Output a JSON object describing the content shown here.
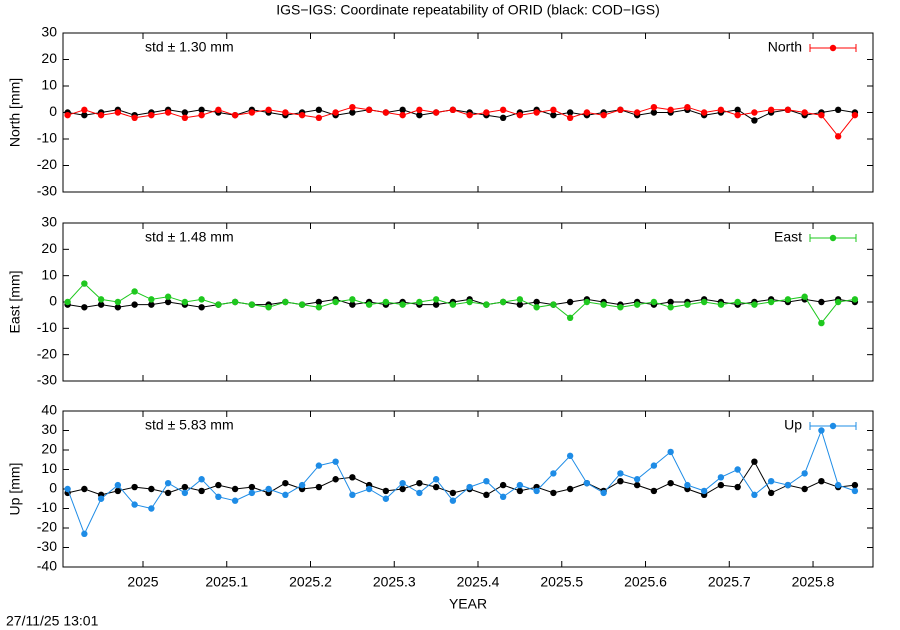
{
  "title": "IGS−IGS: Coordinate repeatability of ORID (black: COD−IGS)",
  "timestamp": "27/11/25 13:01",
  "chart_data": [
    {
      "type": "line",
      "ylabel": "North [mm]",
      "std_label": "std ± 1.30 mm",
      "xlim": [
        2024.9045,
        2025.8716
      ],
      "xticks": [
        2025,
        2025.1,
        2025.2,
        2025.3,
        2025.4,
        2025.5,
        2025.6,
        2025.7,
        2025.8
      ],
      "ylim": [
        -30,
        30
      ],
      "yticks": [
        -30,
        -20,
        -10,
        0,
        10,
        20,
        30
      ],
      "legend": "top-right",
      "x": [
        2024.91,
        2024.93,
        2024.95,
        2024.97,
        2024.99,
        2025.01,
        2025.03,
        2025.05,
        2025.07,
        2025.09,
        2025.11,
        2025.13,
        2025.15,
        2025.17,
        2025.19,
        2025.21,
        2025.23,
        2025.25,
        2025.27,
        2025.29,
        2025.31,
        2025.33,
        2025.35,
        2025.37,
        2025.39,
        2025.41,
        2025.43,
        2025.45,
        2025.47,
        2025.49,
        2025.51,
        2025.53,
        2025.55,
        2025.57,
        2025.59,
        2025.61,
        2025.63,
        2025.65,
        2025.67,
        2025.69,
        2025.71,
        2025.73,
        2025.75,
        2025.77,
        2025.79,
        2025.81,
        2025.83,
        2025.85
      ],
      "series": [
        {
          "color": "#000000",
          "values": [
            0,
            -1,
            0,
            1,
            -1,
            0,
            1,
            0,
            1,
            0,
            -1,
            1,
            0,
            -1,
            0,
            1,
            -1,
            0,
            1,
            0,
            1,
            -1,
            0,
            1,
            0,
            -1,
            -2,
            0,
            1,
            -1,
            0,
            -1,
            0,
            1,
            -1,
            0,
            0,
            1,
            -1,
            0,
            1,
            -3,
            0,
            1,
            -1,
            0,
            1,
            0
          ]
        },
        {
          "name": "North",
          "color": "#ff0000",
          "values": [
            -1,
            1,
            -1,
            0,
            -2,
            -1,
            0,
            -2,
            -1,
            1,
            -1,
            0,
            1,
            0,
            -1,
            -2,
            0,
            2,
            1,
            0,
            -1,
            1,
            0,
            1,
            -1,
            0,
            1,
            -1,
            0,
            1,
            -2,
            0,
            -1,
            1,
            0,
            2,
            1,
            2,
            0,
            1,
            -1,
            0,
            1,
            1,
            0,
            -1,
            -9,
            -1
          ]
        }
      ]
    },
    {
      "type": "line",
      "ylabel": "East [mm]",
      "std_label": "std ± 1.48 mm",
      "xlim": [
        2024.9045,
        2025.8716
      ],
      "xticks": [
        2025,
        2025.1,
        2025.2,
        2025.3,
        2025.4,
        2025.5,
        2025.6,
        2025.7,
        2025.8
      ],
      "ylim": [
        -30,
        30
      ],
      "yticks": [
        -30,
        -20,
        -10,
        0,
        10,
        20,
        30
      ],
      "legend": "top-right",
      "x": [
        2024.91,
        2024.93,
        2024.95,
        2024.97,
        2024.99,
        2025.01,
        2025.03,
        2025.05,
        2025.07,
        2025.09,
        2025.11,
        2025.13,
        2025.15,
        2025.17,
        2025.19,
        2025.21,
        2025.23,
        2025.25,
        2025.27,
        2025.29,
        2025.31,
        2025.33,
        2025.35,
        2025.37,
        2025.39,
        2025.41,
        2025.43,
        2025.45,
        2025.47,
        2025.49,
        2025.51,
        2025.53,
        2025.55,
        2025.57,
        2025.59,
        2025.61,
        2025.63,
        2025.65,
        2025.67,
        2025.69,
        2025.71,
        2025.73,
        2025.75,
        2025.77,
        2025.79,
        2025.81,
        2025.83,
        2025.85
      ],
      "series": [
        {
          "color": "#000000",
          "values": [
            -1,
            -2,
            -1,
            -2,
            -1,
            -1,
            0,
            -1,
            -2,
            -1,
            0,
            -1,
            -1,
            0,
            -1,
            0,
            1,
            -1,
            0,
            -1,
            0,
            -1,
            -1,
            0,
            1,
            -1,
            0,
            -1,
            0,
            -1,
            0,
            1,
            0,
            -1,
            0,
            -1,
            0,
            0,
            1,
            0,
            -1,
            0,
            1,
            0,
            1,
            0,
            1,
            0
          ]
        },
        {
          "name": "East",
          "color": "#1ec81e",
          "values": [
            0,
            7,
            1,
            0,
            4,
            1,
            2,
            0,
            1,
            -1,
            0,
            -1,
            -2,
            0,
            -1,
            -2,
            0,
            1,
            -1,
            0,
            -1,
            0,
            1,
            -1,
            0,
            -1,
            0,
            1,
            -2,
            -1,
            -6,
            0,
            -1,
            -2,
            -1,
            0,
            -2,
            -1,
            0,
            -1,
            0,
            -1,
            0,
            1,
            2,
            -8,
            0,
            1
          ]
        }
      ]
    },
    {
      "type": "line",
      "ylabel": "Up [mm]",
      "std_label": "std ± 5.83 mm",
      "xlabel": "YEAR",
      "xlim": [
        2024.9045,
        2025.8716
      ],
      "xticks": [
        2025,
        2025.1,
        2025.2,
        2025.3,
        2025.4,
        2025.5,
        2025.6,
        2025.7,
        2025.8
      ],
      "ylim": [
        -40,
        40
      ],
      "yticks": [
        -40,
        -30,
        -20,
        -10,
        0,
        10,
        20,
        30,
        40
      ],
      "legend": "top-right",
      "x": [
        2024.91,
        2024.93,
        2024.95,
        2024.97,
        2024.99,
        2025.01,
        2025.03,
        2025.05,
        2025.07,
        2025.09,
        2025.11,
        2025.13,
        2025.15,
        2025.17,
        2025.19,
        2025.21,
        2025.23,
        2025.25,
        2025.27,
        2025.29,
        2025.31,
        2025.33,
        2025.35,
        2025.37,
        2025.39,
        2025.41,
        2025.43,
        2025.45,
        2025.47,
        2025.49,
        2025.51,
        2025.53,
        2025.55,
        2025.57,
        2025.59,
        2025.61,
        2025.63,
        2025.65,
        2025.67,
        2025.69,
        2025.71,
        2025.73,
        2025.75,
        2025.77,
        2025.79,
        2025.81,
        2025.83,
        2025.85
      ],
      "series": [
        {
          "color": "#000000",
          "values": [
            -2,
            0,
            -3,
            -1,
            1,
            0,
            -2,
            1,
            -1,
            2,
            0,
            1,
            -2,
            3,
            0,
            1,
            5,
            6,
            2,
            -1,
            0,
            3,
            1,
            -2,
            0,
            -3,
            2,
            -1,
            1,
            -2,
            0,
            3,
            -1,
            4,
            2,
            -1,
            3,
            0,
            -3,
            2,
            1,
            14,
            -2,
            2,
            0,
            4,
            1,
            2
          ]
        },
        {
          "name": "Up",
          "color": "#1e8ce6",
          "values": [
            0,
            -23,
            -5,
            2,
            -8,
            -10,
            3,
            -2,
            5,
            -4,
            -6,
            -2,
            0,
            -3,
            2,
            12,
            14,
            -3,
            0,
            -5,
            3,
            -2,
            5,
            -6,
            1,
            4,
            -4,
            2,
            -1,
            8,
            17,
            3,
            -2,
            8,
            5,
            12,
            19,
            2,
            -1,
            6,
            10,
            -3,
            4,
            2,
            8,
            30,
            2,
            -1
          ]
        }
      ]
    }
  ]
}
